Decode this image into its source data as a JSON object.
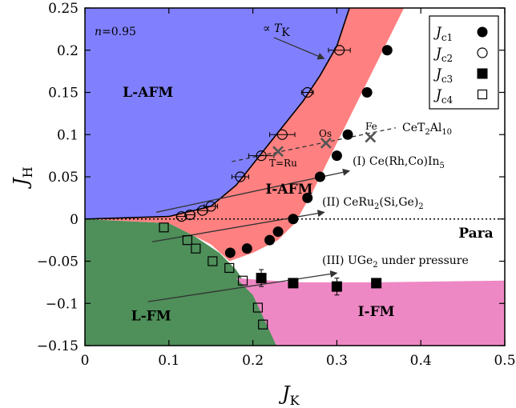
{
  "chart_data": {
    "type": "scatter",
    "xlabel": "J",
    "xlabel_sub": "K",
    "ylabel": "J",
    "ylabel_sub": "H",
    "xlim": [
      0,
      0.5
    ],
    "ylim": [
      -0.15,
      0.25
    ],
    "x_ticks": [
      0,
      0.1,
      0.2,
      0.3,
      0.4,
      0.5
    ],
    "x_tick_labels": [
      "0",
      "0.1",
      "0.2",
      "0.3",
      "0.4",
      "0.5"
    ],
    "y_ticks": [
      -0.15,
      -0.1,
      -0.05,
      0,
      0.05,
      0.1,
      0.15,
      0.2,
      0.25
    ],
    "y_tick_labels": [
      "−0.15",
      "−0.1",
      "−0.05",
      "0",
      "0.05",
      "0.1",
      "0.15",
      "0.2",
      "0.25"
    ],
    "grid": false,
    "legend_position": "top-right",
    "colors": {
      "L-AFM": "#8080ff",
      "I-AFM": "#ff8080",
      "L-FM": "#4e8f5a",
      "I-FM": "#ee88c4",
      "Para": "#ffffff"
    },
    "regions": [
      {
        "name": "L-AFM",
        "label": "L-AFM",
        "label_at": [
          0.045,
          0.145
        ]
      },
      {
        "name": "I-AFM",
        "label": "I-AFM",
        "label_at": [
          0.215,
          0.03
        ]
      },
      {
        "name": "L-FM",
        "label": "L-FM",
        "label_at": [
          0.055,
          -0.12
        ]
      },
      {
        "name": "I-FM",
        "label": "I-FM",
        "label_at": [
          0.325,
          -0.115
        ]
      },
      {
        "name": "Para",
        "label": "Para",
        "label_at": [
          0.445,
          -0.022
        ]
      }
    ],
    "annotations": {
      "n_label": "n",
      "n_value": "=0.95",
      "tk_prefix": "∝ ",
      "tk_symbol": "T",
      "tk_sub": "K",
      "path_I": "(I) Ce(Rh,Co)In",
      "path_I_sub": "5",
      "path_II_a": "(II) CeRu",
      "path_II_sub": "2",
      "path_II_b": "(Si,Ge)",
      "path_II_sub2": "2",
      "path_III_a": "(III) UGe",
      "path_III_sub": "2",
      "path_III_b": " under pressure",
      "ce_a": "CeT",
      "ce_sub1": "2",
      "ce_b": "Al",
      "ce_sub2": "10",
      "ru": "T=Ru",
      "os": "Os",
      "fe": "Fe"
    },
    "series": [
      {
        "name": "Jc1",
        "label_main": "J",
        "label_sub": "c1",
        "marker": "filled-circle",
        "points": [
          [
            0.173,
            -0.04
          ],
          [
            0.193,
            -0.035
          ],
          [
            0.22,
            -0.025
          ],
          [
            0.23,
            -0.015
          ],
          [
            0.248,
            0.0
          ],
          [
            0.265,
            0.025
          ],
          [
            0.28,
            0.05
          ],
          [
            0.3,
            0.075
          ],
          [
            0.313,
            0.1
          ],
          [
            0.336,
            0.15
          ],
          [
            0.36,
            0.2
          ]
        ]
      },
      {
        "name": "Jc2",
        "label_main": "J",
        "label_sub": "c2",
        "marker": "open-circle",
        "points": [
          [
            0.115,
            0.003
          ],
          [
            0.125,
            0.005
          ],
          [
            0.14,
            0.01
          ],
          [
            0.15,
            0.015
          ],
          [
            0.185,
            0.05
          ],
          [
            0.21,
            0.075
          ],
          [
            0.235,
            0.1
          ],
          [
            0.265,
            0.15
          ],
          [
            0.303,
            0.2
          ]
        ],
        "xerr": [
          0.006,
          0.006,
          0.006,
          0.008,
          0.01,
          0.015,
          0.015,
          0.007,
          0.013
        ]
      },
      {
        "name": "Jc3",
        "label_main": "J",
        "label_sub": "c3",
        "marker": "filled-square",
        "points": [
          [
            0.21,
            -0.07
          ],
          [
            0.248,
            -0.076
          ],
          [
            0.3,
            -0.08
          ],
          [
            0.347,
            -0.076
          ]
        ],
        "yerr": [
          0.01,
          0.0,
          0.01,
          0.0
        ]
      },
      {
        "name": "Jc4",
        "label_main": "J",
        "label_sub": "c4",
        "marker": "open-square",
        "points": [
          [
            0.094,
            -0.01
          ],
          [
            0.122,
            -0.025
          ],
          [
            0.132,
            -0.035
          ],
          [
            0.152,
            -0.05
          ],
          [
            0.172,
            -0.058
          ],
          [
            0.188,
            -0.073
          ],
          [
            0.206,
            -0.105
          ],
          [
            0.212,
            -0.125
          ]
        ]
      },
      {
        "name": "CeT2Al10",
        "marker": "cross",
        "points": [
          [
            0.23,
            0.08
          ],
          [
            0.287,
            0.09
          ],
          [
            0.34,
            0.097
          ]
        ]
      }
    ],
    "boundaries": {
      "tk_curve": [
        [
          0.0,
          0.0
        ],
        [
          0.1,
          0.003
        ],
        [
          0.15,
          0.015
        ],
        [
          0.18,
          0.04
        ],
        [
          0.2,
          0.065
        ],
        [
          0.22,
          0.09
        ],
        [
          0.24,
          0.115
        ],
        [
          0.26,
          0.14
        ],
        [
          0.28,
          0.17
        ],
        [
          0.3,
          0.205
        ],
        [
          0.315,
          0.25
        ]
      ],
      "iafm_right": [
        [
          0.172,
          -0.05
        ],
        [
          0.2,
          -0.04
        ],
        [
          0.23,
          -0.025
        ],
        [
          0.25,
          -0.005
        ],
        [
          0.27,
          0.03
        ],
        [
          0.29,
          0.07
        ],
        [
          0.31,
          0.11
        ],
        [
          0.33,
          0.15
        ],
        [
          0.355,
          0.2
        ],
        [
          0.38,
          0.25
        ]
      ],
      "fm_curve": [
        [
          0.0,
          0.0
        ],
        [
          0.1,
          -0.005
        ],
        [
          0.13,
          -0.02
        ],
        [
          0.16,
          -0.04
        ],
        [
          0.18,
          -0.06
        ],
        [
          0.2,
          -0.09
        ],
        [
          0.215,
          -0.12
        ],
        [
          0.228,
          -0.15
        ]
      ],
      "ifm_top": [
        [
          0.18,
          -0.07
        ],
        [
          0.25,
          -0.075
        ],
        [
          0.35,
          -0.075
        ],
        [
          0.5,
          -0.073
        ]
      ],
      "path_I_line": [
        [
          0.085,
          0.008
        ],
        [
          0.315,
          0.057
        ]
      ],
      "path_II_line": [
        [
          0.08,
          -0.027
        ],
        [
          0.285,
          0.008
        ]
      ],
      "path_III_line": [
        [
          0.075,
          -0.098
        ],
        [
          0.3,
          -0.064
        ]
      ],
      "ce_line": [
        [
          0.175,
          0.068
        ],
        [
          0.37,
          0.108
        ]
      ],
      "tk_arrow": [
        [
          0.225,
          0.215
        ],
        [
          0.285,
          0.19
        ]
      ]
    }
  }
}
